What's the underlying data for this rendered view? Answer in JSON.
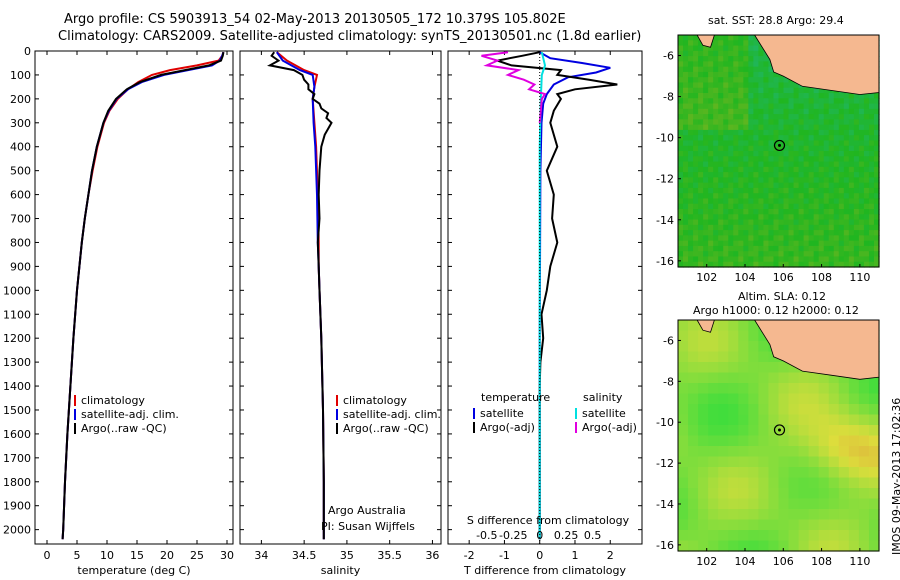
{
  "header": {
    "line1": "Argo profile: CS 5903913_54 02-May-2013 20130505_172 10.379S 105.802E",
    "line2": "Climatology: CARS2009. Satellite-adjusted climatology: synTS_20130501.nc (1.8d earlier)"
  },
  "colors": {
    "climatology": "#e00000",
    "satellite": "#0000e0",
    "argo": "#000000",
    "sat_salinity": "#00e0e0",
    "argo_salinity": "#e000e0",
    "land": "#f5b890",
    "sea": "#3cb95a"
  },
  "depth_ticks": [
    0,
    100,
    200,
    300,
    400,
    500,
    600,
    700,
    800,
    900,
    1000,
    1100,
    1200,
    1300,
    1400,
    1500,
    1600,
    1700,
    1800,
    1900,
    2000
  ],
  "chart_data": [
    {
      "type": "line",
      "id": "temperature",
      "xlabel": "temperature (deg C)",
      "ylabel": "",
      "xlim": [
        -2,
        31
      ],
      "ylim": [
        2060,
        0
      ],
      "xticks": [
        0,
        5,
        10,
        15,
        20,
        25,
        30
      ],
      "legend": {
        "placement": "bottom-left",
        "entries": [
          "climatology",
          "satellite-adj. clim.",
          "Argo(..raw -QC)"
        ]
      },
      "series": [
        {
          "name": "climatology",
          "depth": [
            5,
            20,
            40,
            60,
            80,
            100,
            130,
            160,
            200,
            250,
            300,
            400,
            500,
            600,
            700,
            800,
            900,
            1000,
            1200,
            1400,
            1600,
            1800,
            2000,
            2040
          ],
          "values": [
            29.4,
            29.2,
            28.6,
            25,
            20.5,
            17.5,
            15.2,
            13.5,
            11.8,
            10.4,
            9.5,
            8.4,
            7.6,
            6.9,
            6.3,
            5.8,
            5.4,
            5.0,
            4.4,
            3.9,
            3.4,
            3.0,
            2.7,
            2.6
          ]
        },
        {
          "name": "satellite-adj. clim.",
          "depth": [
            5,
            20,
            40,
            60,
            80,
            100,
            130,
            160,
            200,
            250,
            300,
            400,
            500,
            600,
            700,
            800,
            900,
            1000,
            1200,
            1400,
            1600,
            1800,
            2000,
            2040
          ],
          "values": [
            29.4,
            29.2,
            28.8,
            27.5,
            23.5,
            19.5,
            15.8,
            13.5,
            11.6,
            10.3,
            9.4,
            8.3,
            7.5,
            6.9,
            6.3,
            5.8,
            5.4,
            5.0,
            4.4,
            3.9,
            3.4,
            3.0,
            2.7,
            2.6
          ]
        },
        {
          "name": "Argo(..raw -QC)",
          "depth": [
            5,
            20,
            40,
            60,
            80,
            100,
            130,
            160,
            200,
            250,
            300,
            400,
            500,
            600,
            700,
            800,
            900,
            1000,
            1200,
            1400,
            1600,
            1800,
            2000,
            2040
          ],
          "values": [
            29.4,
            29.3,
            29.0,
            27.0,
            23.0,
            19.0,
            15.5,
            13.3,
            11.5,
            10.2,
            9.4,
            8.3,
            7.5,
            6.9,
            6.3,
            5.8,
            5.4,
            5.0,
            4.4,
            3.9,
            3.4,
            3.0,
            2.7,
            2.6
          ]
        }
      ]
    },
    {
      "type": "line",
      "id": "salinity",
      "xlabel": "salinity",
      "ylabel": "",
      "xlim": [
        33.75,
        36.1
      ],
      "ylim": [
        2060,
        0
      ],
      "xticks": [
        34,
        34.5,
        35,
        35.5,
        36
      ],
      "legend": {
        "placement": "bottom-right",
        "entries": [
          "climatology",
          "satellite-adj. clim.",
          "Argo(..raw -QC)"
        ]
      },
      "annotations": [
        "Argo Australia",
        "PI: Susan Wijffels"
      ],
      "series": [
        {
          "name": "climatology",
          "depth": [
            5,
            40,
            80,
            100,
            150,
            200,
            300,
            400,
            600,
            800,
            900,
            1000,
            1200,
            1500,
            1800,
            2000,
            2040
          ],
          "values": [
            34.18,
            34.3,
            34.5,
            34.65,
            34.62,
            34.6,
            34.62,
            34.64,
            34.66,
            34.67,
            34.67,
            34.68,
            34.7,
            34.72,
            34.73,
            34.73,
            34.73
          ]
        },
        {
          "name": "satellite-adj. clim.",
          "depth": [
            5,
            40,
            80,
            100,
            150,
            200,
            300,
            400,
            600,
            800,
            900,
            1000,
            1200,
            1500,
            1800,
            2000,
            2040
          ],
          "values": [
            34.18,
            34.25,
            34.45,
            34.6,
            34.62,
            34.6,
            34.61,
            34.63,
            34.65,
            34.66,
            34.67,
            34.68,
            34.7,
            34.72,
            34.73,
            34.73,
            34.73
          ]
        },
        {
          "name": "Argo(..raw -QC)",
          "depth": [
            5,
            20,
            40,
            60,
            80,
            100,
            120,
            140,
            160,
            180,
            200,
            220,
            240,
            260,
            280,
            300,
            350,
            400,
            500,
            600,
            700,
            800,
            900,
            1000,
            1200,
            1500,
            1800,
            2000,
            2040
          ],
          "values": [
            34.15,
            34.12,
            34.2,
            34.1,
            34.38,
            34.48,
            34.5,
            34.55,
            34.55,
            34.62,
            34.6,
            34.68,
            34.7,
            34.78,
            34.76,
            34.82,
            34.74,
            34.7,
            34.68,
            34.67,
            34.68,
            34.66,
            34.67,
            34.68,
            34.7,
            34.72,
            34.73,
            34.73,
            34.73
          ]
        }
      ]
    },
    {
      "type": "line",
      "id": "difference",
      "xlabel": "T difference from climatology",
      "x2label": "S difference from climatology",
      "xlim": [
        -2.6,
        2.9
      ],
      "ylim": [
        2060,
        0
      ],
      "xticks": [
        -2,
        -1,
        0,
        1,
        2
      ],
      "x2ticks": [
        "-0.5",
        "-0.25",
        "0",
        "0.25",
        "0.5"
      ],
      "legend": {
        "placement": "bottom",
        "headers": [
          "temperature",
          "salinity"
        ],
        "entries": [
          "satellite",
          "Argo(-adj)",
          "satellite",
          "Argo(-adj)"
        ]
      },
      "series": [
        {
          "name": "temperature satellite",
          "depth": [
            5,
            30,
            50,
            70,
            90,
            110,
            140,
            180,
            220,
            300,
            500,
            800,
            1200,
            2040
          ],
          "values": [
            0,
            0.3,
            1.2,
            2.0,
            1.6,
            0.8,
            0.4,
            0.2,
            0.1,
            0.05,
            0.02,
            0.01,
            0,
            0
          ]
        },
        {
          "name": "temperature Argo(-adj)",
          "depth": [
            5,
            20,
            40,
            60,
            80,
            100,
            120,
            140,
            160,
            180,
            200,
            250,
            300,
            400,
            500,
            600,
            700,
            800,
            900,
            1000,
            1100,
            1200,
            1300,
            1400,
            1500,
            1700,
            1900,
            2040
          ],
          "values": [
            0,
            -0.5,
            -1.2,
            -0.8,
            0.6,
            0.5,
            1.4,
            2.2,
            1.0,
            0.5,
            0.6,
            0.4,
            0.3,
            0.5,
            0.2,
            0.4,
            0.35,
            0.5,
            0.3,
            0.2,
            0.05,
            0.1,
            0.02,
            0,
            0,
            0,
            0,
            0
          ]
        },
        {
          "name": "salinity satellite",
          "depth": [
            5,
            60,
            100,
            200,
            400,
            800,
            1200,
            2040
          ],
          "values": [
            0.02,
            0.05,
            0.02,
            0.01,
            0.0,
            0.0,
            0.0,
            0.0
          ]
        },
        {
          "name": "salinity Argo(-adj)",
          "depth": [
            5,
            20,
            40,
            60,
            80,
            100,
            120,
            140,
            160,
            180,
            200,
            250,
            300
          ],
          "values": [
            -0.3,
            -0.55,
            -0.4,
            -0.5,
            -0.2,
            -0.3,
            -0.15,
            -0.05,
            -0.1,
            0.05,
            0.02,
            0.01,
            0
          ]
        }
      ]
    },
    {
      "type": "heatmap",
      "id": "sst-map",
      "title": "sat. SST: 28.8 Argo: 29.4",
      "xlim": [
        100.5,
        111
      ],
      "ylim": [
        -16.3,
        -5
      ],
      "xticks": [
        102,
        104,
        106,
        108,
        110
      ],
      "yticks": [
        -6,
        -8,
        -10,
        -12,
        -14,
        -16
      ],
      "marker": {
        "lon": 105.802,
        "lat": -10.379
      }
    },
    {
      "type": "heatmap",
      "id": "sla-map",
      "title": "Altim. SLA: 0.12",
      "subtitle": "Argo h1000: 0.12 h2000: 0.12",
      "xlim": [
        100.5,
        111
      ],
      "ylim": [
        -16.3,
        -5
      ],
      "xticks": [
        102,
        104,
        106,
        108,
        110
      ],
      "yticks": [
        -6,
        -8,
        -10,
        -12,
        -14,
        -16
      ],
      "marker": {
        "lon": 105.802,
        "lat": -10.379
      }
    }
  ],
  "side_stamp": "IMOS 09-May-2013 17:02:36"
}
